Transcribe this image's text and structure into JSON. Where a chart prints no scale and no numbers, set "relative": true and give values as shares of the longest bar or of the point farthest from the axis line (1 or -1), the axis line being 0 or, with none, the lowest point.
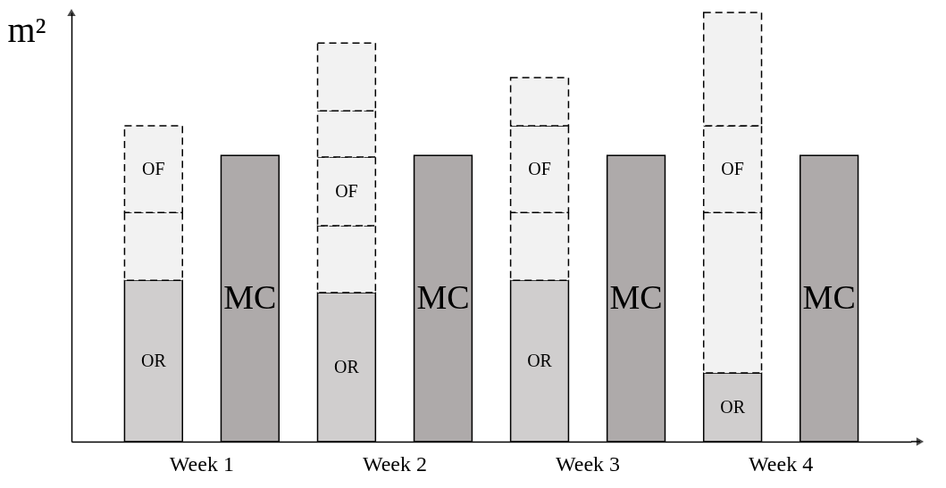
{
  "chart_data": {
    "type": "bar",
    "relative": true,
    "stacked": true,
    "ylabel": "m²",
    "categories": [
      null,
      null,
      null,
      null,
      null,
      null,
      null,
      null
    ],
    "series": [
      {
        "name": "OR",
        "color": "#d0cece",
        "values": [
          0.376,
          null,
          0.347,
          null,
          0.376,
          null,
          0.16,
          null
        ]
      },
      {
        "color": "#f2f2f2",
        "line_style": "dashed",
        "values": [
          0.158,
          null,
          0.156,
          null,
          0.158,
          null,
          0.374,
          null
        ]
      },
      {
        "name": "OF",
        "color": "#f2f2f2",
        "line_style": "dashed",
        "values": [
          0.202,
          null,
          0.16,
          null,
          0.202,
          null,
          0.202,
          null
        ]
      },
      {
        "color": "#f2f2f2",
        "line_style": "dashed",
        "values": [
          null,
          null,
          0.108,
          null,
          0.112,
          null,
          0.264,
          null
        ]
      },
      {
        "color": "#f2f2f2",
        "line_style": "dashed",
        "values": [
          null,
          null,
          0.158,
          null,
          null,
          null,
          null,
          null
        ]
      },
      {
        "name": "MC",
        "color": "#aeaaaa",
        "values": [
          null,
          0.667,
          null,
          0.667,
          null,
          0.667,
          null,
          0.667
        ]
      }
    ],
    "annotations": [
      "Week 1",
      "Week 2",
      "Week 3",
      "Week 4"
    ],
    "grid": false
  }
}
